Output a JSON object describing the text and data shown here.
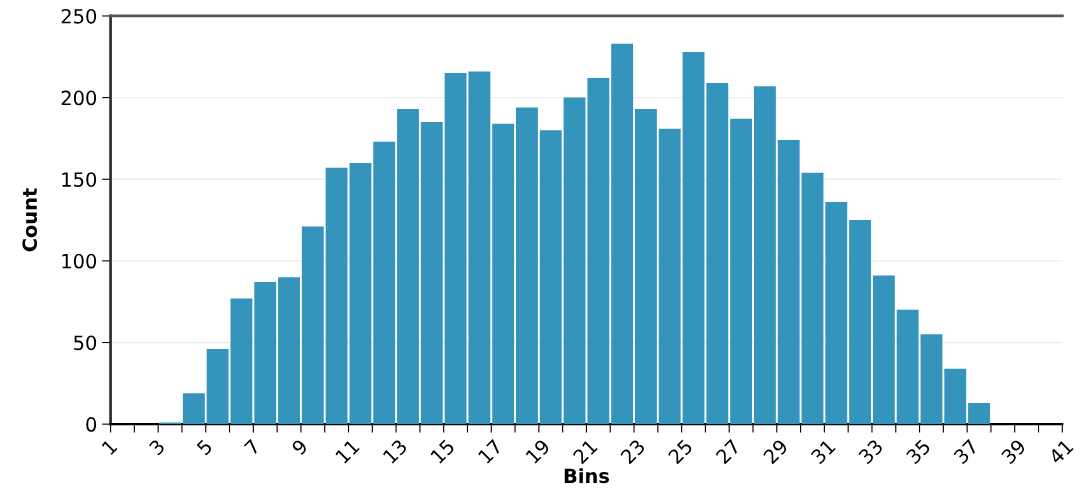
{
  "chart_data": {
    "type": "histogram",
    "xlabel": "Bins",
    "ylabel": "Count",
    "color": "#3594bb",
    "bins": [
      1,
      2,
      3,
      4,
      5,
      6,
      7,
      8,
      9,
      10,
      11,
      12,
      13,
      14,
      15,
      16,
      17,
      18,
      19,
      20,
      21,
      22,
      23,
      24,
      25,
      26,
      27,
      28,
      29,
      30,
      31,
      32,
      33,
      34,
      35,
      36,
      37,
      38,
      39,
      40,
      41
    ],
    "values": [
      0,
      0,
      1,
      19,
      46,
      77,
      87,
      90,
      121,
      157,
      160,
      173,
      193,
      185,
      215,
      216,
      184,
      194,
      180,
      200,
      212,
      233,
      193,
      181,
      228,
      209,
      187,
      207,
      174,
      154,
      136,
      125,
      91,
      70,
      55,
      34,
      13,
      0,
      0,
      0
    ],
    "xlim": [
      1,
      41
    ],
    "xticks": [
      1,
      {
        "value": 2,
        "label": null
      },
      3,
      {
        "value": 4,
        "label": null
      },
      5,
      {
        "value": 6,
        "label": null
      },
      7,
      {
        "value": 8,
        "label": null
      },
      9,
      {
        "value": 10,
        "label": null
      },
      11,
      {
        "value": 12,
        "label": null
      },
      13,
      {
        "value": 14,
        "label": null
      },
      15,
      {
        "value": 16,
        "label": null
      },
      17,
      {
        "value": 18,
        "label": null
      },
      19,
      {
        "value": 20,
        "label": null
      },
      21,
      {
        "value": 22,
        "label": null
      },
      23,
      {
        "value": 24,
        "label": null
      },
      25,
      {
        "value": 26,
        "label": null
      },
      27,
      {
        "value": 28,
        "label": null
      },
      29,
      {
        "value": 30,
        "label": null
      },
      31,
      {
        "value": 32,
        "label": null
      },
      33,
      {
        "value": 34,
        "label": null
      },
      35,
      {
        "value": 36,
        "label": null
      },
      37,
      {
        "value": 38,
        "label": null
      },
      39,
      {
        "value": 40,
        "label": null
      },
      41
    ],
    "ylim": [
      0,
      250
    ],
    "yticks": [
      0,
      50,
      100,
      150,
      200,
      250
    ],
    "grid": "y",
    "legend": false
  }
}
